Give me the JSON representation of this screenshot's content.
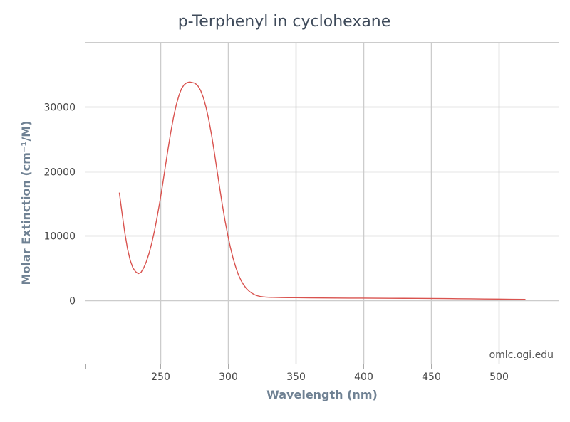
{
  "chart_data": {
    "type": "line",
    "title": "p-Terphenyl in cyclohexane",
    "xlabel": "Wavelength (nm)",
    "ylabel": "Molar Extinction (cm⁻¹/M)",
    "watermark": "omlc.ogi.edu",
    "xlim": [
      195,
      545
    ],
    "ylim": [
      -10000,
      40000
    ],
    "x_ticks": [
      250,
      300,
      350,
      400,
      450,
      500
    ],
    "y_ticks": [
      0,
      10000,
      20000,
      30000
    ],
    "grid": true,
    "line_color": "#d9534f",
    "series": [
      {
        "x": [
          220,
          222,
          224,
          226,
          228,
          230,
          232,
          234,
          236,
          238,
          240,
          242,
          244,
          246,
          248,
          250,
          252,
          254,
          256,
          258,
          260,
          262,
          264,
          266,
          268,
          270,
          272,
          274,
          276,
          278,
          280,
          282,
          284,
          286,
          288,
          290,
          292,
          294,
          296,
          298,
          300,
          302,
          304,
          306,
          308,
          310,
          312,
          314,
          316,
          318,
          320,
          322,
          324,
          326,
          328,
          330,
          335,
          340,
          345,
          350,
          360,
          370,
          380,
          390,
          400,
          410,
          420,
          430,
          440,
          450,
          460,
          470,
          480,
          490,
          500,
          510,
          520
        ],
        "y": [
          16700,
          13500,
          10500,
          8000,
          6200,
          5000,
          4400,
          4100,
          4300,
          5000,
          6000,
          7300,
          8900,
          10800,
          13000,
          15400,
          18000,
          20800,
          23500,
          26100,
          28400,
          30300,
          31800,
          32900,
          33500,
          33800,
          33900,
          33800,
          33700,
          33300,
          32600,
          31500,
          30000,
          28100,
          25800,
          23200,
          20400,
          17600,
          14900,
          12400,
          10200,
          8200,
          6500,
          5100,
          3900,
          3000,
          2300,
          1750,
          1350,
          1050,
          820,
          660,
          560,
          500,
          460,
          430,
          400,
          380,
          370,
          360,
          340,
          320,
          310,
          300,
          290,
          280,
          270,
          260,
          250,
          240,
          220,
          200,
          180,
          160,
          140,
          120,
          100
        ]
      }
    ]
  }
}
